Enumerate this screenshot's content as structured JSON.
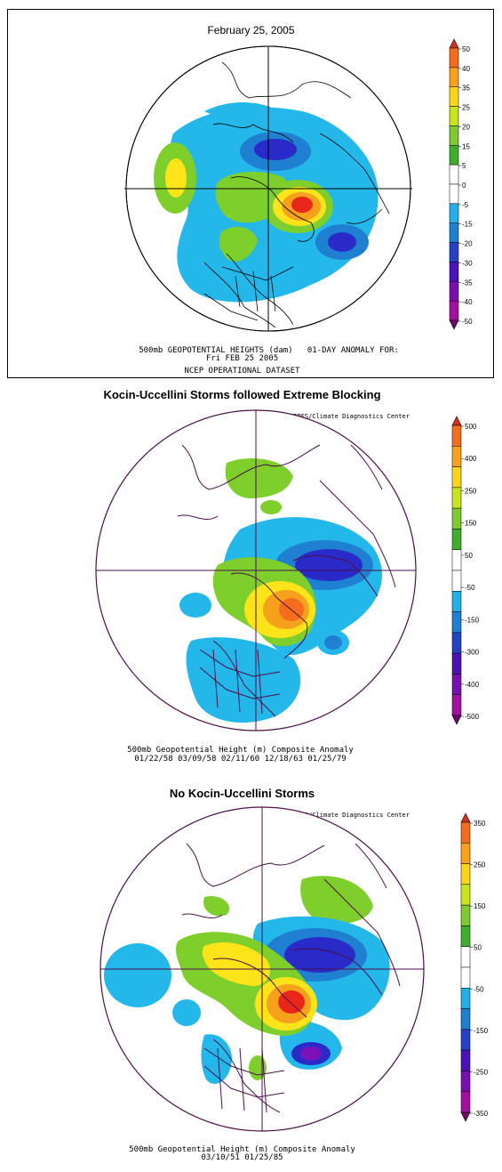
{
  "panels": [
    {
      "title": "February 25, 2005",
      "credit": "",
      "caption_lines": [
        "500mb GEOPOTENTIAL HEIGHTS (dam)   01-DAY ANOMALY FOR:",
        "Fri FEB 25 2005",
        "NCEP OPERATIONAL DATASET"
      ],
      "colorbar": {
        "labels": [
          "50",
          "40",
          "35",
          "25",
          "20",
          "15",
          "5",
          "0",
          "-5",
          "-15",
          "-20",
          "-30",
          "-35",
          "-40",
          "-50"
        ],
        "colors": [
          "#d7301f",
          "#f46d1e",
          "#f9a11c",
          "#fcd41a",
          "#c9e41c",
          "#7fc932",
          "#3fae2c",
          "#ffffff",
          "#ffffff",
          "#23b0e6",
          "#1f7fd0",
          "#2642c4",
          "#4a13b8",
          "#7a0fb0",
          "#a30f9e",
          "#6a0b6a"
        ]
      }
    },
    {
      "title": "Kocin-Uccellini Storms followed Extreme Blocking",
      "credit": "NOAA-CIRES/Climate Diagnostics Center",
      "caption_lines": [
        "500mb Geopotential Height (m) Composite Anomaly",
        "01/22/58 03/09/58 02/11/60 12/18/63 01/25/79"
      ],
      "colorbar": {
        "labels": [
          "500",
          "400",
          "250",
          "150",
          "50",
          "-50",
          "-150",
          "-300",
          "-400",
          "-500"
        ],
        "colors": [
          "#d7301f",
          "#f46d1e",
          "#f9a11c",
          "#fcd41a",
          "#c9e41c",
          "#7fc932",
          "#3fae2c",
          "#ffffff",
          "#ffffff",
          "#23b0e6",
          "#1f7fd0",
          "#2642c4",
          "#4a13b8",
          "#7a0fb0",
          "#a30f9e",
          "#6a0b6a"
        ]
      }
    },
    {
      "title": "No Kocin-Uccellini Storms",
      "credit": "NOAA-CIRES/Climate Diagnostics Center",
      "caption_lines": [
        "500mb Geopotential Height (m) Composite Anomaly",
        "03/10/51 01/25/85"
      ],
      "colorbar": {
        "labels": [
          "350",
          "250",
          "150",
          "50",
          "-50",
          "-150",
          "-250",
          "-350"
        ],
        "colors": [
          "#d7301f",
          "#f46d1e",
          "#f9a11c",
          "#fcd41a",
          "#c9e41c",
          "#7fc932",
          "#3fae2c",
          "#ffffff",
          "#ffffff",
          "#23b0e6",
          "#1f7fd0",
          "#2642c4",
          "#4a13b8",
          "#7a0fb0",
          "#a30f9e",
          "#6a0b6a"
        ]
      }
    }
  ],
  "colors": {
    "land_outline": "#000000",
    "map_outline_dark": "#4b0f4b",
    "positive_strong": "#e8261a",
    "positive_mid": "#f6a11c",
    "positive_weak": "#fde31a",
    "positive_light": "#7fcf2c",
    "negative_light": "#23b7ea",
    "negative_mid": "#1f7fd0",
    "negative_strong": "#2a2ac8",
    "negative_deep": "#7b12b8"
  }
}
